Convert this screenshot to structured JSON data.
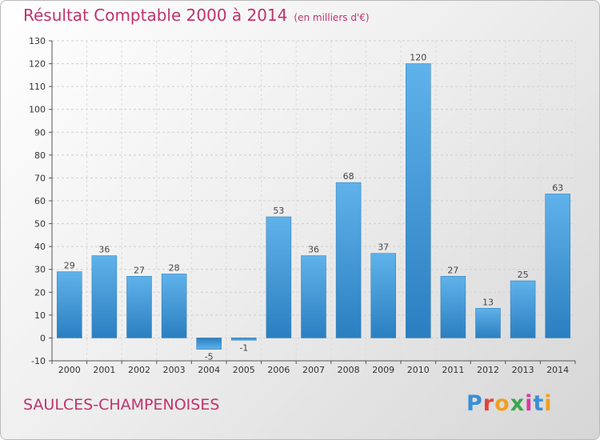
{
  "header": {
    "title": "Résultat Comptable 2000 à 2014",
    "subtitle": "(en milliers d'€)"
  },
  "footer": {
    "commune": "SAULCES-CHAMPENOISES",
    "logo": "Proxiti"
  },
  "colors": {
    "title": "#c0336b",
    "bar_light": "#5fb2ea",
    "bar_dark": "#2b7fc0",
    "grid": "#d0d0d0"
  },
  "chart_data": {
    "type": "bar",
    "title": "Résultat Comptable 2000 à 2014",
    "subtitle": "(en milliers d'€)",
    "categories": [
      "2000",
      "2001",
      "2002",
      "2003",
      "2004",
      "2005",
      "2006",
      "2007",
      "2008",
      "2009",
      "2010",
      "2011",
      "2012",
      "2013",
      "2014"
    ],
    "values": [
      29,
      36,
      27,
      28,
      -5,
      -1,
      53,
      36,
      68,
      37,
      120,
      27,
      13,
      25,
      63
    ],
    "ylim": [
      -10,
      130
    ],
    "yticks": [
      -10,
      0,
      10,
      20,
      30,
      40,
      50,
      60,
      70,
      80,
      90,
      100,
      110,
      120,
      130
    ],
    "grid": true
  }
}
